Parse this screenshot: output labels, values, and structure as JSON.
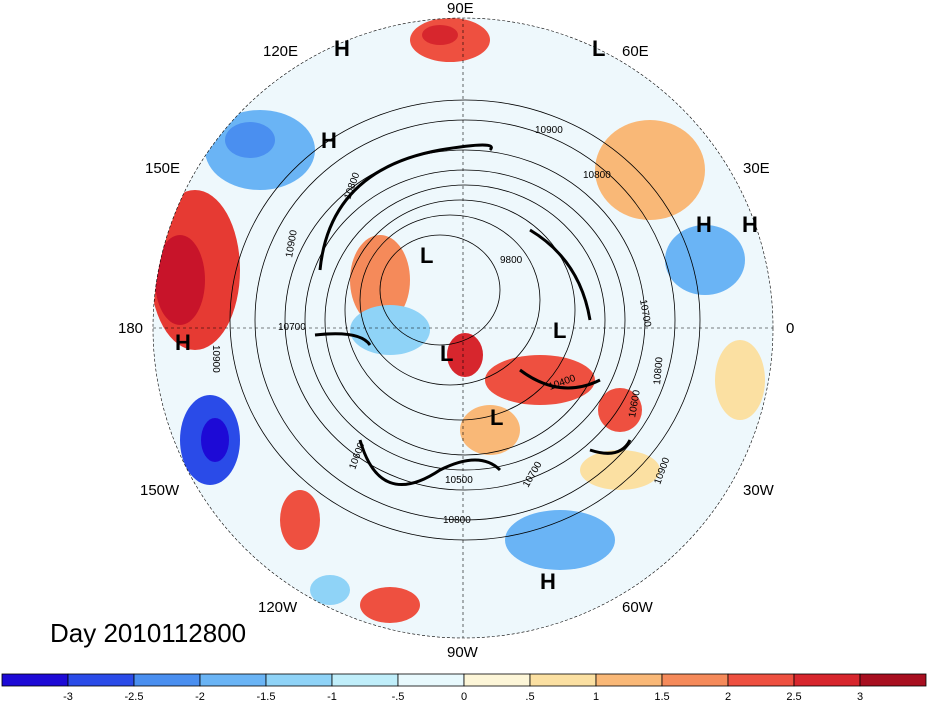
{
  "title": "Day 2010112800",
  "longitude_labels": {
    "lon_90E": "90E",
    "lon_60E": "60E",
    "lon_30E": "30E",
    "lon_0": "0",
    "lon_30W": "30W",
    "lon_60W": "60W",
    "lon_90W": "90W",
    "lon_120W": "120W",
    "lon_150W": "150W",
    "lon_180": "180",
    "lon_150E": "150E",
    "lon_120E": "120E"
  },
  "pressure_centers": [
    {
      "label": "H"
    },
    {
      "label": "H"
    },
    {
      "label": "H"
    },
    {
      "label": "H"
    },
    {
      "label": "H"
    },
    {
      "label": "H"
    },
    {
      "label": "L"
    },
    {
      "label": "L"
    },
    {
      "label": "L"
    },
    {
      "label": "L"
    },
    {
      "label": "L"
    }
  ],
  "contour_labels": [
    "10900",
    "10800",
    "10900",
    "10800",
    "9800",
    "10700",
    "10700",
    "10900",
    "10600",
    "10400",
    "10800",
    "10900",
    "10600",
    "10500",
    "10800",
    "10700"
  ],
  "colorbar": {
    "colors": [
      "#1d0ad6",
      "#2a4be8",
      "#4a8ff0",
      "#6ab4f5",
      "#8fd3f7",
      "#c0eefa",
      "#e8f9fd",
      "#fdf6d8",
      "#fbe0a2",
      "#f9b877",
      "#f58a5a",
      "#ee5040",
      "#d7262d",
      "#a80f20"
    ],
    "tick_labels": [
      "-3",
      "-2.5",
      "-2",
      "-1.5",
      "-1",
      "-.5",
      "0",
      ".5",
      "1",
      "1.5",
      "2",
      "2.5",
      "3"
    ]
  }
}
